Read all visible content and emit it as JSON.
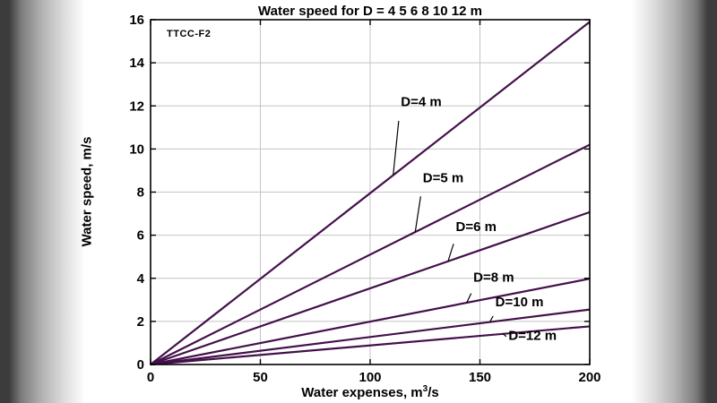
{
  "chart_data": {
    "type": "line",
    "title": "Water speed for D = 4  5  6  8  10  12 m",
    "xlabel": {
      "prefix": "Water expenses, m",
      "sup": "3",
      "suffix": "/s"
    },
    "ylabel": "Water speed, m/s",
    "watermark": "TTCC-F2",
    "xlim": [
      0,
      200
    ],
    "ylim": [
      0,
      16
    ],
    "xticks": [
      0,
      50,
      100,
      150,
      200
    ],
    "yticks": [
      0,
      2,
      4,
      6,
      8,
      10,
      12,
      14,
      16
    ],
    "grid": true,
    "legend": "none",
    "series_color": "#43104a",
    "series": [
      {
        "name": "D=4 m",
        "x": [
          0,
          200
        ],
        "y": [
          0,
          15.9
        ]
      },
      {
        "name": "D=5 m",
        "x": [
          0,
          200
        ],
        "y": [
          0,
          10.2
        ]
      },
      {
        "name": "D=6 m",
        "x": [
          0,
          200
        ],
        "y": [
          0,
          7.07
        ]
      },
      {
        "name": "D=8 m",
        "x": [
          0,
          200
        ],
        "y": [
          0,
          3.98
        ]
      },
      {
        "name": "D=10 m",
        "x": [
          0,
          200
        ],
        "y": [
          0,
          2.55
        ]
      },
      {
        "name": "D=12 m",
        "x": [
          0,
          200
        ],
        "y": [
          0,
          1.77
        ]
      }
    ],
    "annotations": [
      {
        "label": "D=4 m",
        "lx": 114,
        "ly": 12.0,
        "cx1": 113,
        "cy1": 11.3,
        "cx2": 110.5,
        "cy2": 8.8
      },
      {
        "label": "D=5 m",
        "lx": 124,
        "ly": 8.45,
        "cx1": 123,
        "cy1": 7.8,
        "cx2": 120.5,
        "cy2": 6.13
      },
      {
        "label": "D=6 m",
        "lx": 139,
        "ly": 6.2,
        "cx1": 138,
        "cy1": 5.6,
        "cx2": 135.5,
        "cy2": 4.8
      },
      {
        "label": "D=8 m",
        "lx": 147,
        "ly": 3.85,
        "cx1": 146,
        "cy1": 3.3,
        "cx2": 144,
        "cy2": 2.87
      },
      {
        "label": "D=10 m",
        "lx": 157,
        "ly": 2.7,
        "cx1": 156,
        "cy1": 2.25,
        "cx2": 154.5,
        "cy2": 1.97
      },
      {
        "label": "D=12 m",
        "lx": 163,
        "ly": 1.15,
        "cx1": 162,
        "cy1": 1.3,
        "cx2": 160.5,
        "cy2": 1.42
      }
    ]
  }
}
